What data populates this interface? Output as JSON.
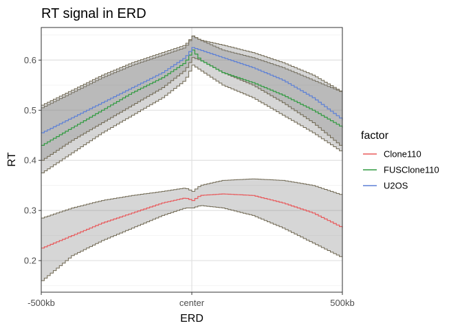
{
  "chart_data": {
    "type": "line",
    "title": "RT signal in ERD",
    "xlabel": "ERD",
    "ylabel": "RT",
    "x_tick_labels": [
      "-500kb",
      "center",
      "500kb"
    ],
    "x_tick_positions": [
      -1,
      0,
      1
    ],
    "xlim": [
      -1,
      1
    ],
    "y_ticks": [
      0.2,
      0.3,
      0.4,
      0.5,
      0.6
    ],
    "ylim": [
      0.137,
      0.665
    ],
    "grid": true,
    "legend_title": "factor",
    "legend_position": "right",
    "x": [
      -1,
      -0.8,
      -0.6,
      -0.4,
      -0.2,
      -0.05,
      0,
      0.05,
      0.2,
      0.4,
      0.6,
      0.8,
      1
    ],
    "series": [
      {
        "name": "Clone110",
        "color": "#E8585A",
        "values": [
          0.225,
          0.25,
          0.275,
          0.295,
          0.315,
          0.325,
          0.32,
          0.33,
          0.333,
          0.33,
          0.315,
          0.295,
          0.265
        ],
        "lower": [
          0.16,
          0.21,
          0.24,
          0.265,
          0.29,
          0.305,
          0.305,
          0.31,
          0.305,
          0.29,
          0.265,
          0.235,
          0.205
        ],
        "upper": [
          0.285,
          0.305,
          0.32,
          0.33,
          0.338,
          0.345,
          0.338,
          0.35,
          0.36,
          0.363,
          0.36,
          0.35,
          0.33
        ]
      },
      {
        "name": "FUSClone110",
        "color": "#2E9A3E",
        "values": [
          0.43,
          0.465,
          0.5,
          0.535,
          0.565,
          0.595,
          0.62,
          0.6,
          0.575,
          0.555,
          0.53,
          0.5,
          0.465
        ],
        "lower": [
          0.375,
          0.415,
          0.455,
          0.49,
          0.525,
          0.56,
          0.59,
          0.58,
          0.55,
          0.525,
          0.49,
          0.455,
          0.415
        ],
        "upper": [
          0.505,
          0.535,
          0.565,
          0.59,
          0.61,
          0.625,
          0.648,
          0.64,
          0.62,
          0.605,
          0.585,
          0.56,
          0.535
        ]
      },
      {
        "name": "U2OS",
        "color": "#5B7FD6",
        "values": [
          0.455,
          0.485,
          0.515,
          0.545,
          0.575,
          0.605,
          0.625,
          0.62,
          0.605,
          0.585,
          0.56,
          0.525,
          0.48
        ],
        "lower": [
          0.4,
          0.44,
          0.475,
          0.51,
          0.545,
          0.58,
          0.605,
          0.6,
          0.575,
          0.55,
          0.515,
          0.475,
          0.425
        ],
        "upper": [
          0.51,
          0.54,
          0.57,
          0.595,
          0.615,
          0.63,
          0.648,
          0.64,
          0.63,
          0.615,
          0.595,
          0.57,
          0.535
        ]
      }
    ]
  }
}
